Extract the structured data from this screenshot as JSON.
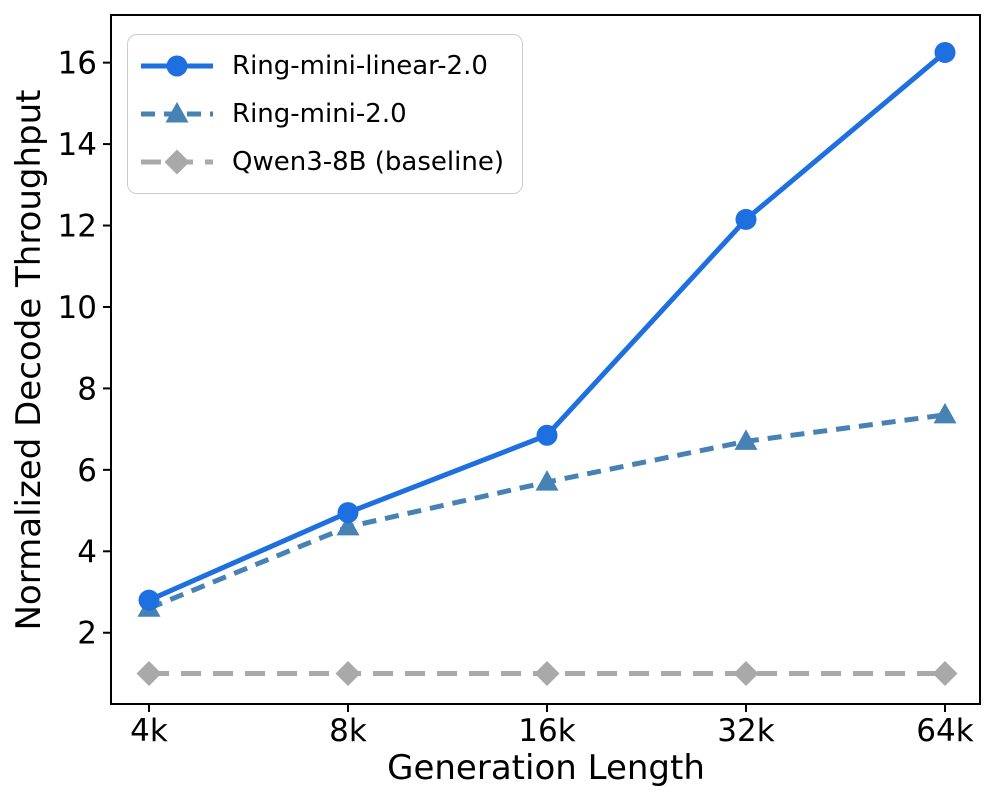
{
  "figure": {
    "background": "#ffffff",
    "text_color": "#000000"
  },
  "chart_data": {
    "type": "line",
    "title": "",
    "xlabel": "Generation Length",
    "ylabel": "Normalized Decode Throughput",
    "categories": [
      "4k",
      "8k",
      "16k",
      "32k",
      "64k"
    ],
    "x_scale": "log2 categories, evenly spaced ticks",
    "yticks": [
      2,
      4,
      6,
      8,
      10,
      12,
      14,
      16
    ],
    "ylim": [
      0.25,
      17.17
    ],
    "grid": false,
    "legend_position": "upper-left",
    "series": [
      {
        "name": "Ring-mini-linear-2.0",
        "marker": "circle",
        "line_style": "solid",
        "dash": "none",
        "color": "#1e6fe0",
        "values": [
          2.8,
          4.95,
          6.85,
          12.15,
          16.25
        ]
      },
      {
        "name": "Ring-mini-2.0",
        "marker": "triangle",
        "line_style": "dashed",
        "dash": "short",
        "color": "#4682b4",
        "values": [
          2.6,
          4.6,
          5.7,
          6.7,
          7.35
        ]
      },
      {
        "name": "Qwen3-8B (baseline)",
        "marker": "diamond",
        "line_style": "dashed",
        "dash": "long",
        "color": "#a9a9a9",
        "values": [
          1.0,
          1.0,
          1.0,
          1.0,
          1.0
        ]
      }
    ]
  }
}
